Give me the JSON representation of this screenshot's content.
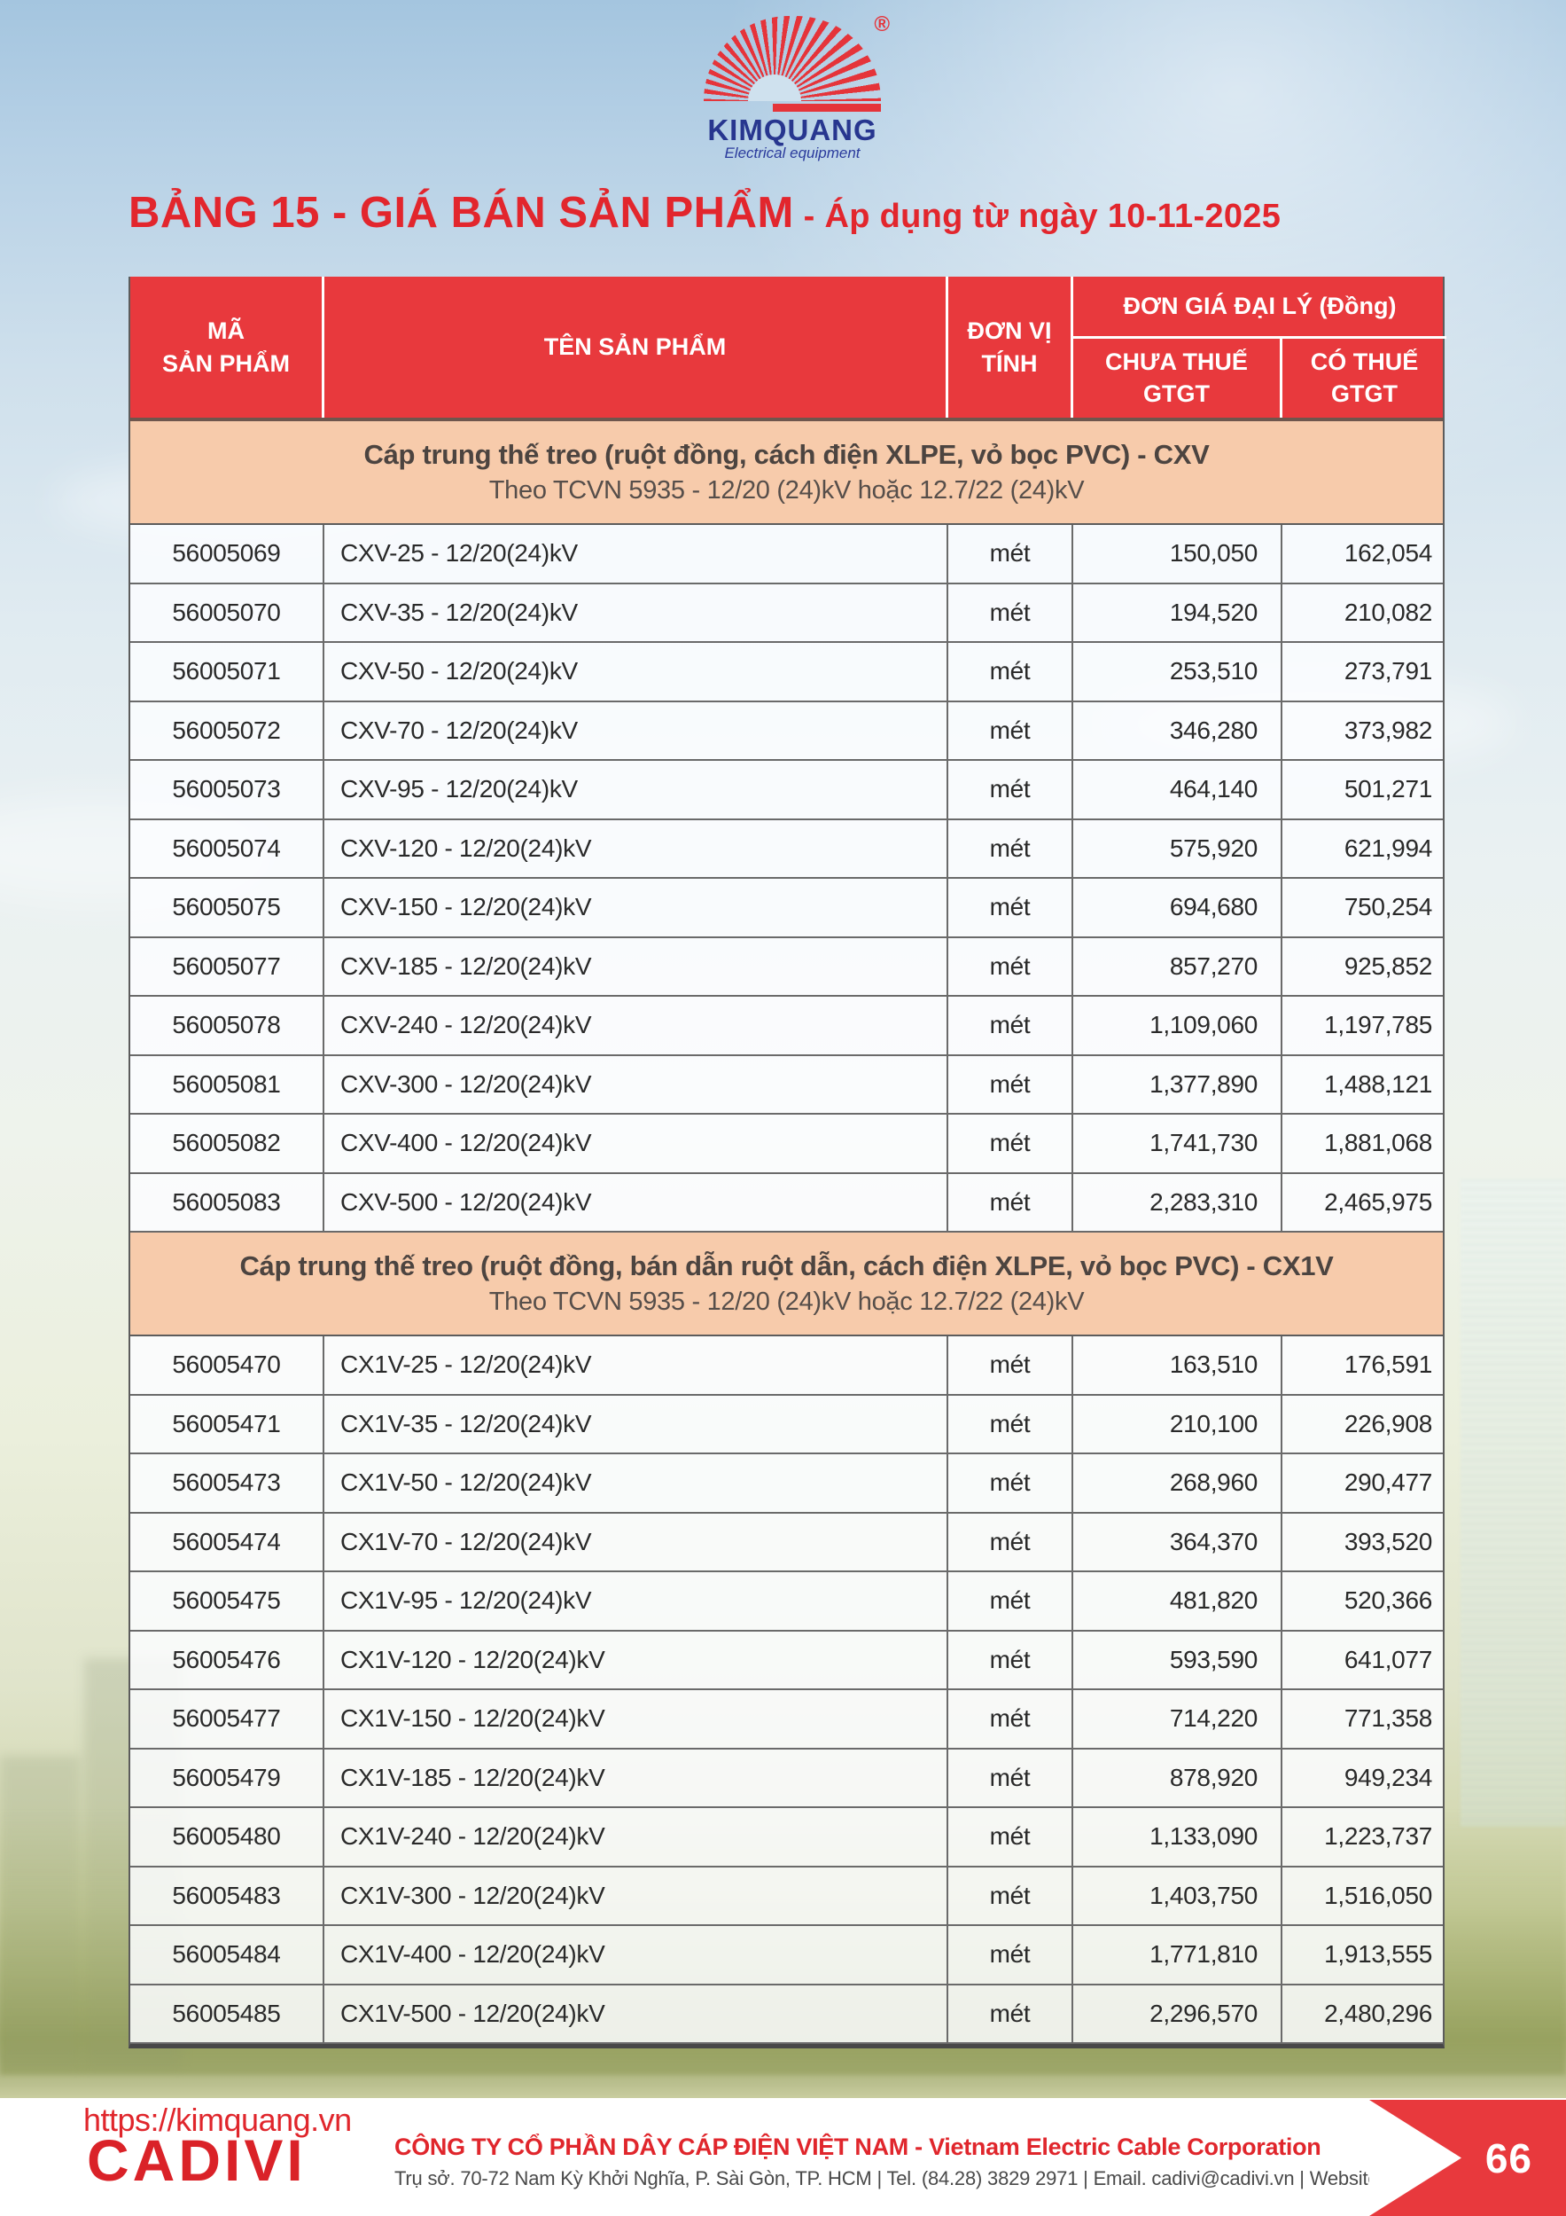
{
  "logo": {
    "brand": "KIMQUANG",
    "tagline": "Electrical equipment",
    "registered": "®"
  },
  "title": {
    "main": "BẢNG 15 - GIÁ BÁN SẢN PHẨM",
    "suffix": " - Áp dụng từ ngày 10-11-2025"
  },
  "colors": {
    "header_red": "#e8393d",
    "title_red": "#e2262d",
    "section_peach": "#f7cbab",
    "brand_blue": "#27368f"
  },
  "table": {
    "headers": {
      "code_l1": "MÃ",
      "code_l2": "SẢN PHẨM",
      "name": "TÊN SẢN PHẨM",
      "unit_l1": "ĐƠN VỊ",
      "unit_l2": "TÍNH",
      "price_group": "ĐƠN GIÁ ĐẠI LÝ (Đồng)",
      "pre_tax_l1": "CHƯA THUẾ",
      "pre_tax_l2": "GTGT",
      "with_tax_l1": "CÓ THUẾ",
      "with_tax_l2": "GTGT"
    },
    "sections": [
      {
        "title": "Cáp trung thế treo (ruột đồng, cách điện XLPE,  vỏ bọc PVC) - CXV",
        "subtitle": "Theo TCVN 5935 - 12/20 (24)kV hoặc 12.7/22 (24)kV",
        "rows": [
          {
            "code": "56005069",
            "name": "CXV-25 - 12/20(24)kV",
            "unit": "mét",
            "pre_tax": "150,050",
            "with_tax": "162,054"
          },
          {
            "code": "56005070",
            "name": "CXV-35 - 12/20(24)kV",
            "unit": "mét",
            "pre_tax": "194,520",
            "with_tax": "210,082"
          },
          {
            "code": "56005071",
            "name": "CXV-50 - 12/20(24)kV",
            "unit": "mét",
            "pre_tax": "253,510",
            "with_tax": "273,791"
          },
          {
            "code": "56005072",
            "name": "CXV-70 - 12/20(24)kV",
            "unit": "mét",
            "pre_tax": "346,280",
            "with_tax": "373,982"
          },
          {
            "code": "56005073",
            "name": "CXV-95 - 12/20(24)kV",
            "unit": "mét",
            "pre_tax": "464,140",
            "with_tax": "501,271"
          },
          {
            "code": "56005074",
            "name": "CXV-120 - 12/20(24)kV",
            "unit": "mét",
            "pre_tax": "575,920",
            "with_tax": "621,994"
          },
          {
            "code": "56005075",
            "name": "CXV-150 - 12/20(24)kV",
            "unit": "mét",
            "pre_tax": "694,680",
            "with_tax": "750,254"
          },
          {
            "code": "56005077",
            "name": "CXV-185 - 12/20(24)kV",
            "unit": "mét",
            "pre_tax": "857,270",
            "with_tax": "925,852"
          },
          {
            "code": "56005078",
            "name": "CXV-240 - 12/20(24)kV",
            "unit": "mét",
            "pre_tax": "1,109,060",
            "with_tax": "1,197,785"
          },
          {
            "code": "56005081",
            "name": "CXV-300 - 12/20(24)kV",
            "unit": "mét",
            "pre_tax": "1,377,890",
            "with_tax": "1,488,121"
          },
          {
            "code": "56005082",
            "name": "CXV-400 - 12/20(24)kV",
            "unit": "mét",
            "pre_tax": "1,741,730",
            "with_tax": "1,881,068"
          },
          {
            "code": "56005083",
            "name": "CXV-500 - 12/20(24)kV",
            "unit": "mét",
            "pre_tax": "2,283,310",
            "with_tax": "2,465,975"
          }
        ]
      },
      {
        "title": "Cáp trung thế treo (ruột đồng, bán dẫn ruột dẫn, cách điện XLPE,  vỏ bọc PVC) - CX1V",
        "subtitle": "Theo TCVN 5935 - 12/20 (24)kV hoặc 12.7/22 (24)kV",
        "rows": [
          {
            "code": "56005470",
            "name": "CX1V-25 - 12/20(24)kV",
            "unit": "mét",
            "pre_tax": "163,510",
            "with_tax": "176,591"
          },
          {
            "code": "56005471",
            "name": "CX1V-35 - 12/20(24)kV",
            "unit": "mét",
            "pre_tax": "210,100",
            "with_tax": "226,908"
          },
          {
            "code": "56005473",
            "name": "CX1V-50 - 12/20(24)kV",
            "unit": "mét",
            "pre_tax": "268,960",
            "with_tax": "290,477"
          },
          {
            "code": "56005474",
            "name": "CX1V-70 - 12/20(24)kV",
            "unit": "mét",
            "pre_tax": "364,370",
            "with_tax": "393,520"
          },
          {
            "code": "56005475",
            "name": "CX1V-95 - 12/20(24)kV",
            "unit": "mét",
            "pre_tax": "481,820",
            "with_tax": "520,366"
          },
          {
            "code": "56005476",
            "name": "CX1V-120 - 12/20(24)kV",
            "unit": "mét",
            "pre_tax": "593,590",
            "with_tax": "641,077"
          },
          {
            "code": "56005477",
            "name": "CX1V-150 - 12/20(24)kV",
            "unit": "mét",
            "pre_tax": "714,220",
            "with_tax": "771,358"
          },
          {
            "code": "56005479",
            "name": "CX1V-185 - 12/20(24)kV",
            "unit": "mét",
            "pre_tax": "878,920",
            "with_tax": "949,234"
          },
          {
            "code": "56005480",
            "name": "CX1V-240 - 12/20(24)kV",
            "unit": "mét",
            "pre_tax": "1,133,090",
            "with_tax": "1,223,737"
          },
          {
            "code": "56005483",
            "name": "CX1V-300 - 12/20(24)kV",
            "unit": "mét",
            "pre_tax": "1,403,750",
            "with_tax": "1,516,050"
          },
          {
            "code": "56005484",
            "name": "CX1V-400 - 12/20(24)kV",
            "unit": "mét",
            "pre_tax": "1,771,810",
            "with_tax": "1,913,555"
          },
          {
            "code": "56005485",
            "name": "CX1V-500 - 12/20(24)kV",
            "unit": "mét",
            "pre_tax": "2,296,570",
            "with_tax": "2,480,296"
          }
        ]
      }
    ]
  },
  "footer": {
    "url": "https://kimquang.vn",
    "brand": "CADIVI",
    "company": "CÔNG TY CỔ PHẦN DÂY CÁP ĐIỆN VIỆT NAM - Vietnam Electric Cable Corporation",
    "address": "Trụ sở. 70-72 Nam Kỳ Khởi Nghĩa, P. Sài Gòn, TP. HCM | Tel. (84.28) 3829 2971 | Email. cadivi@cadivi.vn | Website. cadivi.vn",
    "page_number": "66"
  }
}
